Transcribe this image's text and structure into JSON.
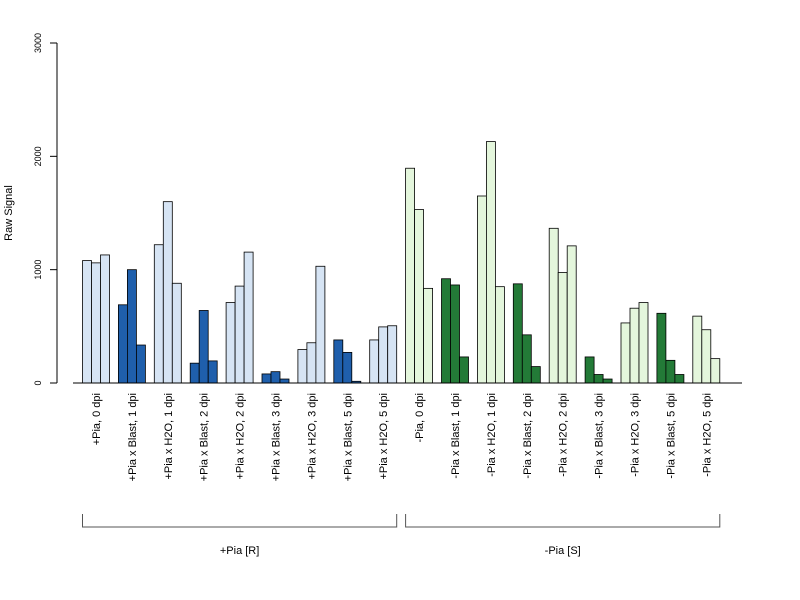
{
  "chart_data": {
    "type": "bar",
    "ylabel": "Raw Signal",
    "ylim": [
      0,
      3000
    ],
    "yticks": [
      0,
      1000,
      2000,
      3000
    ],
    "grid": false,
    "bars_per_category": 3,
    "categories": [
      "+Pia, 0 dpi",
      "+Pia x Blast, 1 dpi",
      "+Pia x H2O, 1 dpi",
      "+Pia x Blast, 2 dpi",
      "+Pia x H2O, 2 dpi",
      "+Pia x Blast, 3 dpi",
      "+Pia x H2O, 3 dpi",
      "+Pia x Blast, 5 dpi",
      "+Pia x H2O, 5 dpi",
      "-Pia, 0 dpi",
      "-Pia x Blast, 1 dpi",
      "-Pia x H2O, 1 dpi",
      "-Pia x Blast, 2 dpi",
      "-Pia x H2O, 2 dpi",
      "-Pia x Blast, 3 dpi",
      "-Pia x H2O, 3 dpi",
      "-Pia x Blast, 5 dpi",
      "-Pia x H2O, 5 dpi"
    ],
    "values": [
      [
        1080,
        1060,
        1130
      ],
      [
        690,
        1000,
        335
      ],
      [
        1220,
        1600,
        880
      ],
      [
        175,
        640,
        195
      ],
      [
        710,
        855,
        1155
      ],
      [
        80,
        100,
        35
      ],
      [
        295,
        355,
        1030
      ],
      [
        380,
        270,
        15
      ],
      [
        380,
        495,
        505
      ],
      [
        1895,
        1530,
        835
      ],
      [
        920,
        865,
        230
      ],
      [
        1650,
        2130,
        850
      ],
      [
        875,
        425,
        145
      ],
      [
        1365,
        975,
        1210
      ],
      [
        230,
        75,
        35
      ],
      [
        530,
        660,
        710
      ],
      [
        615,
        200,
        75
      ],
      [
        590,
        470,
        215
      ]
    ],
    "bar_colors": [
      "#d6e4f4",
      "#1f5fac",
      "#d6e4f4",
      "#1f5fac",
      "#d6e4f4",
      "#1f5fac",
      "#d6e4f4",
      "#1f5fac",
      "#d6e4f4",
      "#e4f6dc",
      "#237a37",
      "#e4f6dc",
      "#237a37",
      "#e4f6dc",
      "#237a37",
      "#e4f6dc",
      "#237a37",
      "#e4f6dc"
    ],
    "groups": [
      {
        "label": "+Pia [R]",
        "start": 0,
        "end": 8
      },
      {
        "label": "-Pia [S]",
        "start": 9,
        "end": 17
      }
    ]
  }
}
